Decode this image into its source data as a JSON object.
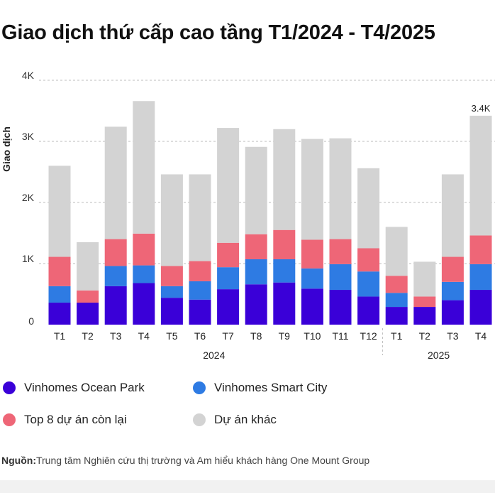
{
  "title": "Giao dịch thứ cấp cao tầng T1/2024 - T4/2025",
  "colors": {
    "ocean_park": "#3a00d8",
    "smart_city": "#2e7be3",
    "top8": "#ee6677",
    "other": "#d3d3d3"
  },
  "legend": [
    {
      "label": "Vinhomes Ocean Park",
      "color": "#3a00d8"
    },
    {
      "label": "Vinhomes Smart City",
      "color": "#2e7be3"
    },
    {
      "label": "Top 8 dự án còn lại",
      "color": "#ee6677"
    },
    {
      "label": "Dự án khác",
      "color": "#d3d3d3"
    }
  ],
  "source": {
    "label": "Nguồn:",
    "text": "Trung tâm Nghiên cứu thị trường và Am hiểu khách hàng One Mount Group"
  },
  "chart_data": {
    "type": "bar",
    "stacked": true,
    "title": "Giao dịch thứ cấp cao tầng T1/2024 - T4/2025",
    "ylabel": "Giao dịch",
    "xlabel": "",
    "ylim": [
      0,
      4000
    ],
    "yticks": [
      0,
      1000,
      2000,
      3000,
      4000
    ],
    "ytick_labels": [
      "0",
      "1K",
      "2K",
      "3K",
      "4K"
    ],
    "grid": true,
    "categories": [
      "T1",
      "T2",
      "T3",
      "T4",
      "T5",
      "T6",
      "T7",
      "T8",
      "T9",
      "T10",
      "T11",
      "T12",
      "T1",
      "T2",
      "T3",
      "T4"
    ],
    "groups": [
      {
        "label": "2024",
        "start": 0,
        "end": 11
      },
      {
        "label": "2025",
        "start": 12,
        "end": 15
      }
    ],
    "series": [
      {
        "name": "Vinhomes Ocean Park",
        "values": [
          360,
          360,
          630,
          680,
          440,
          410,
          580,
          660,
          690,
          590,
          570,
          460,
          290,
          290,
          400,
          570
        ]
      },
      {
        "name": "Vinhomes Smart City",
        "values": [
          270,
          0,
          330,
          290,
          190,
          300,
          360,
          410,
          380,
          330,
          420,
          410,
          230,
          0,
          300,
          420
        ]
      },
      {
        "name": "Top 8 dự án còn lại",
        "values": [
          480,
          200,
          440,
          520,
          330,
          330,
          400,
          410,
          480,
          470,
          410,
          380,
          280,
          170,
          410,
          470
        ]
      },
      {
        "name": "Dự án khác",
        "values": [
          1490,
          790,
          1840,
          2170,
          1500,
          1420,
          1880,
          1430,
          1650,
          1650,
          1650,
          1310,
          800,
          570,
          1350,
          1960
        ]
      }
    ],
    "annotations": [
      {
        "index": 15,
        "text": "3.4K"
      }
    ]
  }
}
